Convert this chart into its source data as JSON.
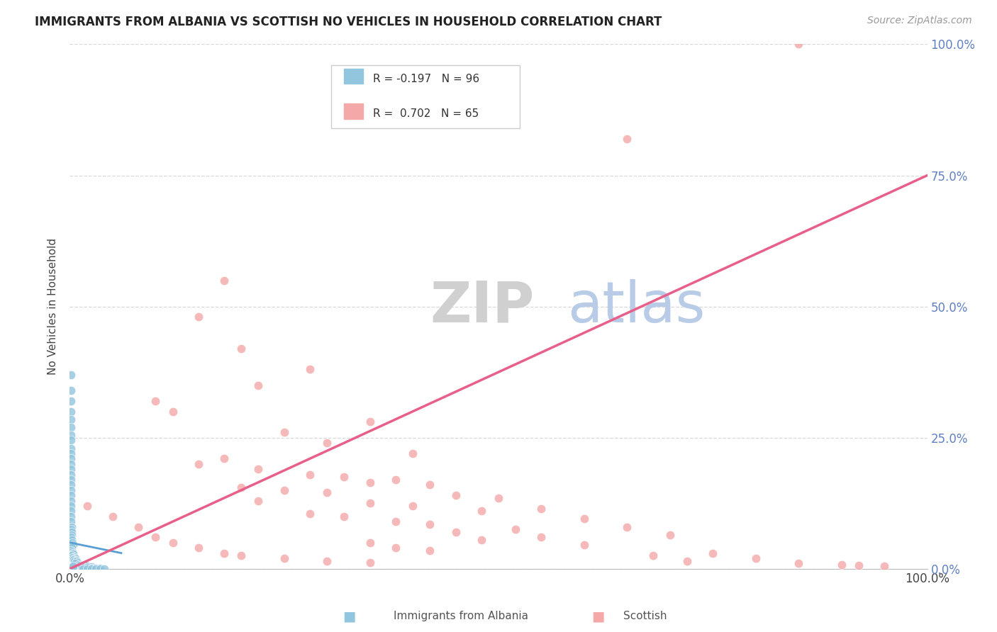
{
  "title": "IMMIGRANTS FROM ALBANIA VS SCOTTISH NO VEHICLES IN HOUSEHOLD CORRELATION CHART",
  "source": "Source: ZipAtlas.com",
  "ylabel": "No Vehicles in Household",
  "R1": "-0.197",
  "N1": "96",
  "R2": "0.702",
  "N2": "65",
  "color_blue": "#92c5de",
  "color_pink": "#f4a8a8",
  "color_blue_line": "#5a9fd4",
  "color_pink_line": "#e8608a",
  "watermark_zip": "ZIP",
  "watermark_atlas": "atlas",
  "background_color": "#ffffff",
  "grid_color": "#d8d8d8",
  "tick_color": "#6080c0",
  "legend_label1": "Immigrants from Albania",
  "legend_label2": "Scottish",
  "blue_scatter": [
    [
      0.1,
      37.0
    ],
    [
      0.1,
      34.0
    ],
    [
      0.15,
      32.0
    ],
    [
      0.15,
      30.0
    ],
    [
      0.1,
      28.5
    ],
    [
      0.1,
      27.0
    ],
    [
      0.1,
      25.5
    ],
    [
      0.15,
      24.5
    ],
    [
      0.1,
      23.0
    ],
    [
      0.1,
      22.0
    ],
    [
      0.1,
      21.0
    ],
    [
      0.15,
      20.0
    ],
    [
      0.1,
      19.0
    ],
    [
      0.1,
      18.0
    ],
    [
      0.15,
      17.0
    ],
    [
      0.1,
      16.0
    ],
    [
      0.15,
      15.0
    ],
    [
      0.1,
      14.0
    ],
    [
      0.1,
      13.0
    ],
    [
      0.15,
      12.0
    ],
    [
      0.1,
      11.0
    ],
    [
      0.1,
      10.0
    ],
    [
      0.15,
      9.0
    ],
    [
      0.25,
      8.0
    ],
    [
      0.1,
      7.5
    ],
    [
      0.2,
      7.0
    ],
    [
      0.25,
      6.5
    ],
    [
      0.1,
      6.0
    ],
    [
      0.2,
      5.5
    ],
    [
      0.3,
      5.0
    ],
    [
      0.35,
      4.5
    ],
    [
      0.2,
      4.0
    ],
    [
      0.1,
      3.5
    ],
    [
      0.3,
      3.2
    ],
    [
      0.35,
      3.0
    ],
    [
      0.4,
      2.8
    ],
    [
      0.2,
      2.5
    ],
    [
      0.5,
      2.3
    ],
    [
      0.3,
      2.2
    ],
    [
      0.6,
      2.0
    ],
    [
      0.35,
      1.8
    ],
    [
      0.45,
      1.7
    ],
    [
      0.7,
      1.6
    ],
    [
      0.55,
      1.5
    ],
    [
      0.8,
      1.4
    ],
    [
      0.9,
      1.2
    ],
    [
      0.65,
      1.0
    ],
    [
      1.0,
      0.8
    ],
    [
      1.2,
      0.7
    ],
    [
      1.5,
      0.6
    ],
    [
      1.8,
      0.5
    ],
    [
      2.0,
      0.45
    ],
    [
      2.5,
      0.4
    ],
    [
      1.1,
      0.3
    ],
    [
      1.3,
      0.25
    ],
    [
      1.6,
      0.2
    ],
    [
      2.0,
      0.18
    ],
    [
      2.5,
      0.15
    ],
    [
      3.0,
      0.12
    ],
    [
      3.5,
      0.1
    ],
    [
      0.05,
      0.15
    ],
    [
      0.1,
      0.12
    ],
    [
      0.15,
      0.1
    ],
    [
      0.2,
      0.09
    ],
    [
      0.25,
      0.08
    ],
    [
      0.3,
      0.07
    ],
    [
      0.35,
      0.06
    ],
    [
      0.4,
      0.05
    ],
    [
      0.45,
      0.04
    ],
    [
      0.5,
      0.04
    ],
    [
      0.55,
      0.03
    ],
    [
      0.65,
      0.03
    ],
    [
      0.8,
      0.02
    ],
    [
      1.0,
      0.02
    ],
    [
      1.5,
      0.02
    ],
    [
      2.0,
      0.01
    ],
    [
      2.5,
      0.01
    ],
    [
      3.0,
      0.01
    ],
    [
      3.5,
      0.01
    ],
    [
      4.0,
      0.01
    ],
    [
      0.1,
      0.2
    ],
    [
      0.15,
      0.18
    ],
    [
      0.2,
      0.15
    ],
    [
      0.25,
      0.12
    ],
    [
      0.3,
      0.1
    ],
    [
      0.35,
      0.08
    ],
    [
      0.4,
      0.06
    ],
    [
      0.5,
      0.05
    ],
    [
      0.2,
      0.3
    ],
    [
      0.25,
      0.25
    ],
    [
      0.3,
      0.22
    ],
    [
      0.35,
      0.18
    ],
    [
      0.4,
      0.15
    ],
    [
      0.3,
      0.4
    ],
    [
      0.35,
      0.35
    ],
    [
      0.4,
      0.5
    ]
  ],
  "pink_scatter": [
    [
      85.0,
      100.0
    ],
    [
      65.0,
      82.0
    ],
    [
      18.0,
      55.0
    ],
    [
      15.0,
      48.0
    ],
    [
      20.0,
      42.0
    ],
    [
      28.0,
      38.0
    ],
    [
      22.0,
      35.0
    ],
    [
      10.0,
      32.0
    ],
    [
      12.0,
      30.0
    ],
    [
      35.0,
      28.0
    ],
    [
      25.0,
      26.0
    ],
    [
      30.0,
      24.0
    ],
    [
      40.0,
      22.0
    ],
    [
      18.0,
      21.0
    ],
    [
      15.0,
      20.0
    ],
    [
      22.0,
      19.0
    ],
    [
      28.0,
      18.0
    ],
    [
      32.0,
      17.5
    ],
    [
      38.0,
      17.0
    ],
    [
      35.0,
      16.5
    ],
    [
      42.0,
      16.0
    ],
    [
      20.0,
      15.5
    ],
    [
      25.0,
      15.0
    ],
    [
      30.0,
      14.5
    ],
    [
      45.0,
      14.0
    ],
    [
      50.0,
      13.5
    ],
    [
      22.0,
      13.0
    ],
    [
      35.0,
      12.5
    ],
    [
      40.0,
      12.0
    ],
    [
      55.0,
      11.5
    ],
    [
      48.0,
      11.0
    ],
    [
      28.0,
      10.5
    ],
    [
      32.0,
      10.0
    ],
    [
      60.0,
      9.5
    ],
    [
      38.0,
      9.0
    ],
    [
      42.0,
      8.5
    ],
    [
      65.0,
      8.0
    ],
    [
      52.0,
      7.5
    ],
    [
      45.0,
      7.0
    ],
    [
      70.0,
      6.5
    ],
    [
      55.0,
      6.0
    ],
    [
      48.0,
      5.5
    ],
    [
      35.0,
      5.0
    ],
    [
      60.0,
      4.5
    ],
    [
      38.0,
      4.0
    ],
    [
      42.0,
      3.5
    ],
    [
      75.0,
      3.0
    ],
    [
      68.0,
      2.5
    ],
    [
      80.0,
      2.0
    ],
    [
      72.0,
      1.5
    ],
    [
      85.0,
      1.0
    ],
    [
      90.0,
      0.8
    ],
    [
      92.0,
      0.6
    ],
    [
      95.0,
      0.5
    ],
    [
      2.0,
      12.0
    ],
    [
      5.0,
      10.0
    ],
    [
      8.0,
      8.0
    ],
    [
      10.0,
      6.0
    ],
    [
      12.0,
      5.0
    ],
    [
      15.0,
      4.0
    ],
    [
      18.0,
      3.0
    ],
    [
      20.0,
      2.5
    ],
    [
      25.0,
      2.0
    ],
    [
      30.0,
      1.5
    ],
    [
      35.0,
      1.2
    ]
  ],
  "blue_trendline_x": [
    0.0,
    6.0
  ],
  "blue_trendline_y": [
    5.0,
    3.0
  ],
  "pink_trendline_x": [
    0.0,
    100.0
  ],
  "pink_trendline_y": [
    0.0,
    75.0
  ],
  "xlim": [
    0.0,
    100.0
  ],
  "ylim": [
    0.0,
    100.0
  ],
  "y_tick_positions": [
    0.0,
    25.0,
    50.0,
    75.0,
    100.0
  ],
  "y_tick_labels": [
    "0.0%",
    "25.0%",
    "50.0%",
    "75.0%",
    "100.0%"
  ],
  "x_tick_positions": [
    0.0,
    100.0
  ],
  "x_tick_labels": [
    "0.0%",
    "100.0%"
  ]
}
